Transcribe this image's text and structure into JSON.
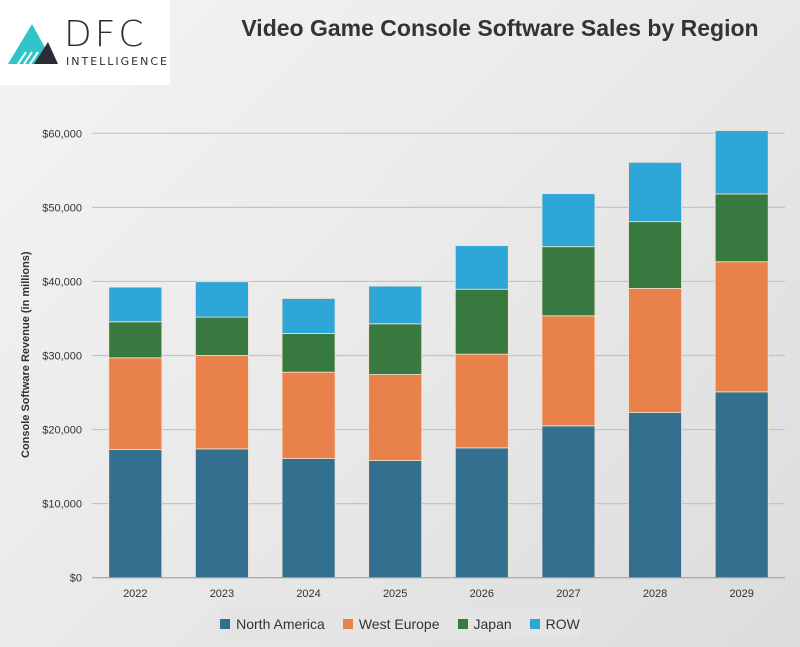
{
  "logo": {
    "text": "DFC",
    "subtext": "INTELLIGENCE",
    "colors": [
      "#2ec4c8",
      "#2a2d33"
    ]
  },
  "chart_data": {
    "type": "bar",
    "stacked": true,
    "title": "Video Game Console Software Sales by Region",
    "xlabel": "",
    "ylabel": "Console Software Revenue (in millions)",
    "ylim": [
      0,
      60000
    ],
    "yticks": [
      "$0",
      "$10,000",
      "$20,000",
      "$30,000",
      "$40,000",
      "$50,000",
      "$60,000"
    ],
    "grid": true,
    "legend_position": "bottom",
    "categories": [
      "2022",
      "2023",
      "2024",
      "2025",
      "2026",
      "2027",
      "2028",
      "2029"
    ],
    "series": [
      {
        "name": "North America",
        "color": "#336f8f",
        "values": [
          17300,
          17390,
          16080,
          15810,
          17530,
          20500,
          22300,
          25090
        ]
      },
      {
        "name": "West Europe",
        "color": "#e8824a",
        "values": [
          12390,
          12610,
          11670,
          11620,
          12650,
          14860,
          16750,
          17570
        ]
      },
      {
        "name": "Japan",
        "color": "#38793f",
        "values": [
          4860,
          5180,
          5220,
          6850,
          8770,
          9330,
          9020,
          9150
        ]
      },
      {
        "name": "ROW",
        "color": "#2fa6d8",
        "values": [
          4680,
          4780,
          4730,
          5090,
          5880,
          7160,
          8010,
          8560
        ]
      }
    ]
  }
}
